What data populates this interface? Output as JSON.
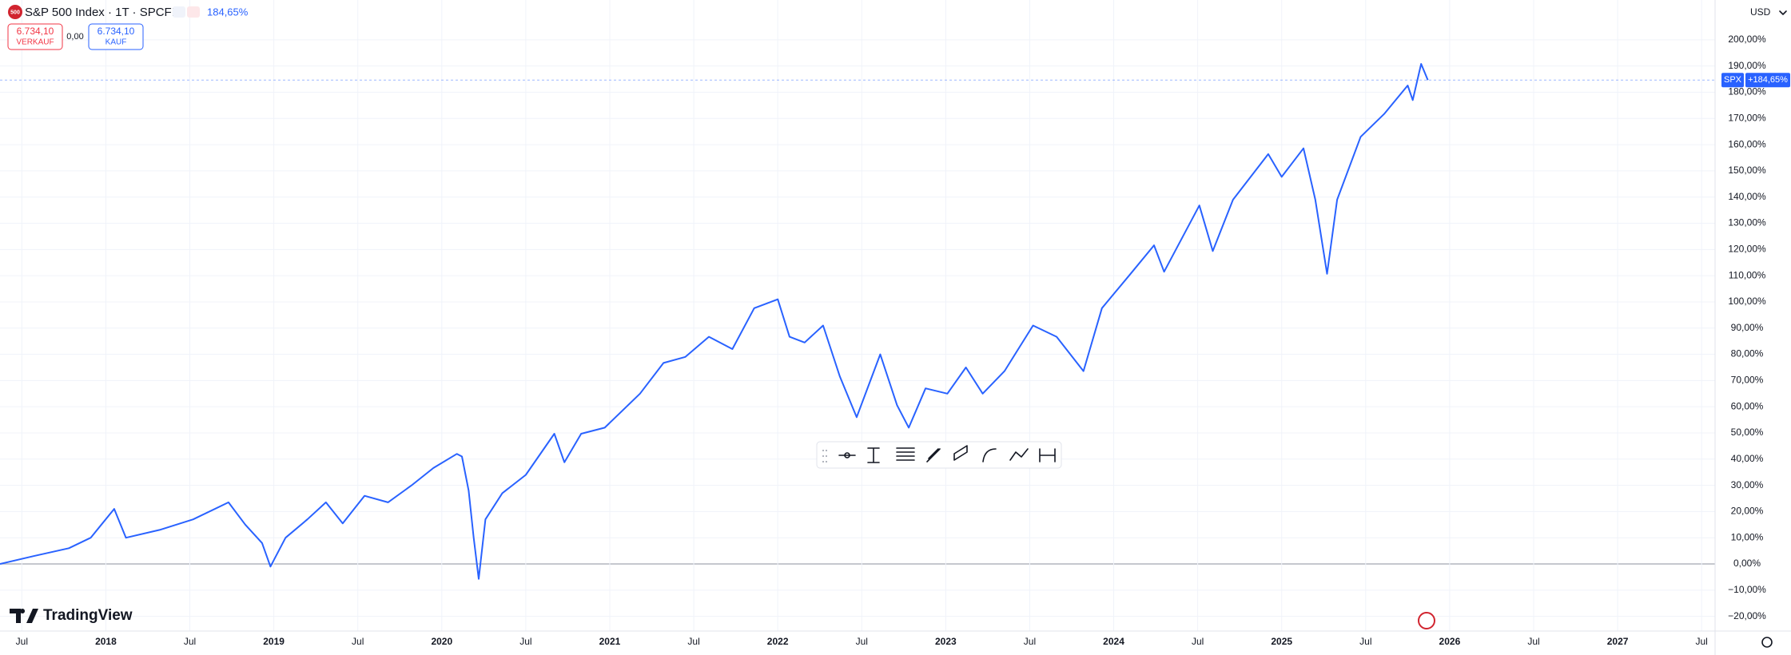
{
  "header": {
    "icon_text": "500",
    "title": "S&P 500 Index · 1T · SPCFD",
    "change": "184,65%",
    "sell_price": "6.734,10",
    "sell_label": "VERKAUF",
    "spread": "0,00",
    "buy_price": "6.734,10",
    "buy_label": "KAUF",
    "currency": "USD",
    "logo": "TradingView"
  },
  "chart_data": {
    "type": "line",
    "symbol": "SPX",
    "last_value_label": "+184,65%",
    "color": "#2962ff",
    "grid": true,
    "x": [
      2017.37,
      2017.57,
      2017.78,
      2017.91,
      2018.05,
      2018.12,
      2018.32,
      2018.52,
      2018.73,
      2018.83,
      2018.93,
      2018.98,
      2019.07,
      2019.2,
      2019.31,
      2019.41,
      2019.54,
      2019.68,
      2019.82,
      2019.95,
      2020.09,
      2020.12,
      2020.16,
      2020.19,
      2020.22,
      2020.26,
      2020.36,
      2020.5,
      2020.67,
      2020.73,
      2020.83,
      2020.97,
      2021.18,
      2021.32,
      2021.45,
      2021.59,
      2021.73,
      2021.86,
      2022.0,
      2022.07,
      2022.16,
      2022.27,
      2022.37,
      2022.47,
      2022.61,
      2022.71,
      2022.78,
      2022.88,
      2023.01,
      2023.12,
      2023.22,
      2023.35,
      2023.52,
      2023.66,
      2023.82,
      2023.93,
      2024.1,
      2024.24,
      2024.3,
      2024.51,
      2024.59,
      2024.71,
      2024.92,
      2025.0,
      2025.13,
      2025.2,
      2025.27,
      2025.33,
      2025.47,
      2025.61,
      2025.75,
      2025.78,
      2025.83,
      2025.87
    ],
    "values": [
      0,
      3,
      6,
      10,
      21,
      10,
      13,
      17,
      23.5,
      15,
      8,
      -1,
      10,
      17,
      23.5,
      15.5,
      26,
      23.5,
      30,
      36.6,
      42,
      41,
      28,
      10,
      -5.7,
      17,
      27,
      34,
      49.7,
      38.8,
      49.7,
      52,
      65,
      76.7,
      79,
      86.7,
      82,
      97.6,
      101,
      86.7,
      84.5,
      91,
      71.5,
      56,
      80,
      60.6,
      52,
      67,
      65,
      75,
      65,
      73.6,
      91,
      86.7,
      73.6,
      97.6,
      110.7,
      121.6,
      111.5,
      136.8,
      119.4,
      139,
      156.4,
      147.7,
      158.6,
      139,
      110.7,
      139,
      163,
      171.7,
      182.6,
      177,
      190.8,
      184.65
    ],
    "xlim": [
      2017.37,
      2027.58
    ],
    "xticks": [
      {
        "value": 2017.5,
        "label": "Jul"
      },
      2018,
      {
        "value": 2018.5,
        "label": "Jul"
      },
      2019,
      {
        "value": 2019.5,
        "label": "Jul"
      },
      2020,
      {
        "value": 2020.5,
        "label": "Jul"
      },
      2021,
      {
        "value": 2021.5,
        "label": "Jul"
      },
      2022,
      {
        "value": 2022.5,
        "label": "Jul"
      },
      2023,
      {
        "value": 2023.5,
        "label": "Jul"
      },
      2024,
      {
        "value": 2024.5,
        "label": "Jul"
      },
      2025,
      {
        "value": 2025.5,
        "label": "Jul"
      },
      2026,
      {
        "value": 2026.5,
        "label": "Jul"
      },
      2027,
      {
        "value": 2027.5,
        "label": "Jul"
      }
    ],
    "ylim": [
      -25.6,
      215.2
    ],
    "yticks": [
      {
        "value": -20,
        "label": "−20,00%"
      },
      {
        "value": -10,
        "label": "−10,00%"
      },
      {
        "value": 0,
        "label": "0,00%"
      },
      {
        "value": 10,
        "label": "10,00%"
      },
      {
        "value": 20,
        "label": "20,00%"
      },
      {
        "value": 30,
        "label": "30,00%"
      },
      {
        "value": 40,
        "label": "40,00%"
      },
      {
        "value": 50,
        "label": "50,00%"
      },
      {
        "value": 60,
        "label": "60,00%"
      },
      {
        "value": 70,
        "label": "70,00%"
      },
      {
        "value": 80,
        "label": "80,00%"
      },
      {
        "value": 90,
        "label": "90,00%"
      },
      {
        "value": 100,
        "label": "100,00%"
      },
      {
        "value": 110,
        "label": "110,00%"
      },
      {
        "value": 120,
        "label": "120,00%"
      },
      {
        "value": 130,
        "label": "130,00%"
      },
      {
        "value": 140,
        "label": "140,00%"
      },
      {
        "value": 150,
        "label": "150,00%"
      },
      {
        "value": 160,
        "label": "160,00%"
      },
      {
        "value": 170,
        "label": "170,00%"
      },
      {
        "value": 180,
        "label": "180,00%"
      },
      {
        "value": 190,
        "label": "190,00%"
      },
      {
        "value": 200,
        "label": "200,00%"
      }
    ]
  }
}
